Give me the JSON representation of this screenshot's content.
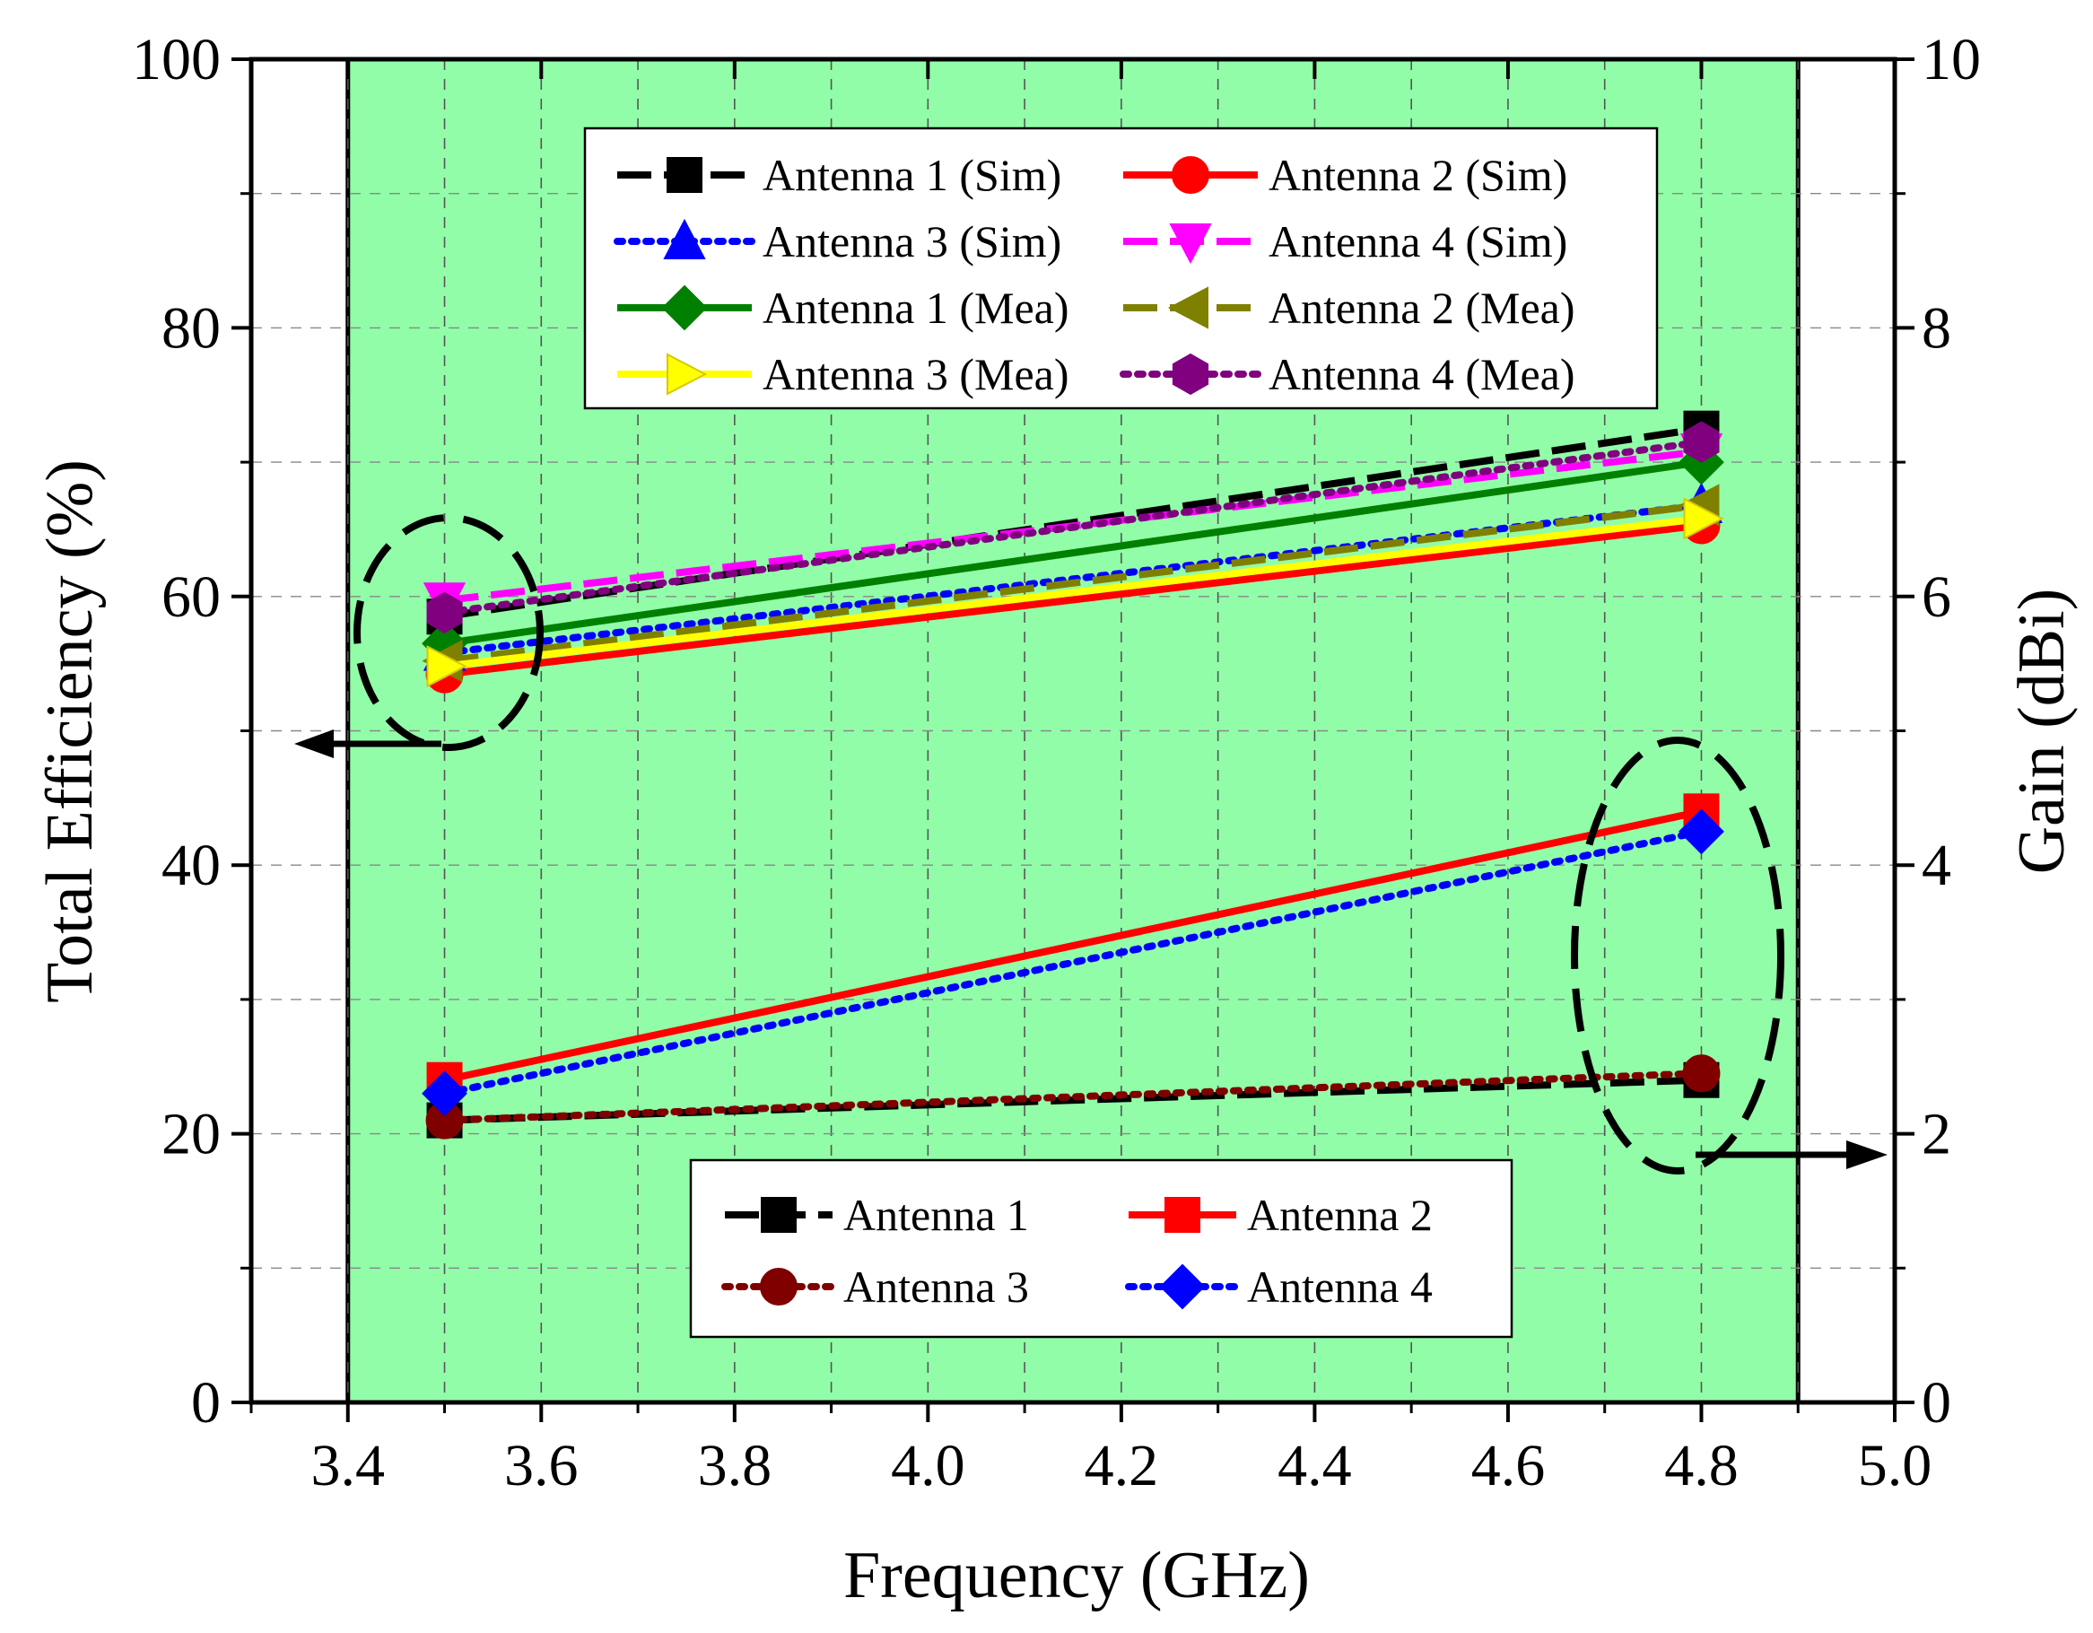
{
  "chart_data": {
    "type": "line",
    "title": "",
    "xlabel": "Frequency (GHz)",
    "ylabel_left": "Total Efficiency (%)",
    "ylabel_right": "Gain (dBi)",
    "xlim": [
      3.3,
      5.0
    ],
    "ylim_left": [
      0,
      100
    ],
    "ylim_right": [
      0,
      10
    ],
    "x_ticks": [
      "3.4",
      "3.6",
      "3.8",
      "4.0",
      "4.2",
      "4.4",
      "4.6",
      "4.8",
      "5.0"
    ],
    "x_tick_values": [
      3.4,
      3.6,
      3.8,
      4.0,
      4.2,
      4.4,
      4.6,
      4.8,
      5.0
    ],
    "y_left_ticks": [
      "0",
      "20",
      "40",
      "60",
      "80",
      "100"
    ],
    "y_left_tick_values": [
      0,
      20,
      40,
      60,
      80,
      100
    ],
    "y_right_ticks": [
      "0",
      "2",
      "4",
      "6",
      "8",
      "10"
    ],
    "y_right_tick_values": [
      0,
      2,
      4,
      6,
      8,
      10
    ],
    "grid": true,
    "highlight_band": {
      "x_start": 3.4,
      "x_end": 4.9,
      "color": "#92fda8"
    },
    "efficiency_series": [
      {
        "name": "Antenna 1 (Sim)",
        "x": [
          3.5,
          4.8
        ],
        "y": [
          58.5,
          72.5
        ],
        "color": "#000000",
        "dash": "dash",
        "marker": "square"
      },
      {
        "name": "Antenna 2 (Sim)",
        "x": [
          3.5,
          4.8
        ],
        "y": [
          54.2,
          65.3
        ],
        "color": "#ff0000",
        "dash": "solid",
        "marker": "circle"
      },
      {
        "name": "Antenna 3 (Sim)",
        "x": [
          3.5,
          4.8
        ],
        "y": [
          55.8,
          66.8
        ],
        "color": "#0000ff",
        "dash": "dot",
        "marker": "triangle-up"
      },
      {
        "name": "Antenna 4 (Sim)",
        "x": [
          3.5,
          4.8
        ],
        "y": [
          59.7,
          70.8
        ],
        "color": "#ff00ff",
        "dash": "dash",
        "marker": "triangle-down"
      },
      {
        "name": "Antenna 1 (Mea)",
        "x": [
          3.5,
          4.8
        ],
        "y": [
          56.5,
          70.0
        ],
        "color": "#008000",
        "dash": "solid",
        "marker": "diamond"
      },
      {
        "name": "Antenna 2 (Mea)",
        "x": [
          3.5,
          4.8
        ],
        "y": [
          55.2,
          66.8
        ],
        "color": "#808000",
        "dash": "dash",
        "marker": "triangle-left"
      },
      {
        "name": "Antenna 3 (Mea)",
        "x": [
          3.5,
          4.8
        ],
        "y": [
          54.8,
          65.8
        ],
        "color": "#ffff00",
        "dash": "solid",
        "marker": "triangle-right"
      },
      {
        "name": "Antenna 4 (Mea)",
        "x": [
          3.5,
          4.8
        ],
        "y": [
          58.8,
          71.5
        ],
        "color": "#800080",
        "dash": "dot",
        "marker": "hexagon"
      }
    ],
    "gain_series": [
      {
        "name": "Antenna 1",
        "x": [
          3.5,
          4.8
        ],
        "y": [
          2.1,
          2.4
        ],
        "color": "#000000",
        "dash": "dash",
        "marker": "square"
      },
      {
        "name": "Antenna 2",
        "x": [
          3.5,
          4.8
        ],
        "y": [
          2.4,
          4.4
        ],
        "color": "#ff0000",
        "dash": "solid",
        "marker": "square"
      },
      {
        "name": "Antenna 3",
        "x": [
          3.5,
          4.8
        ],
        "y": [
          2.1,
          2.45
        ],
        "color": "#800000",
        "dash": "dot",
        "marker": "circle"
      },
      {
        "name": "Antenna 4",
        "x": [
          3.5,
          4.8
        ],
        "y": [
          2.3,
          4.25
        ],
        "color": "#0000ff",
        "dash": "dot",
        "marker": "diamond"
      }
    ],
    "annotations": [
      {
        "type": "dashed-ellipse",
        "around": "efficiency at 3.5 GHz",
        "arrow": "left"
      },
      {
        "type": "dashed-ellipse",
        "around": "gain at 4.8 GHz",
        "arrow": "right"
      }
    ]
  }
}
